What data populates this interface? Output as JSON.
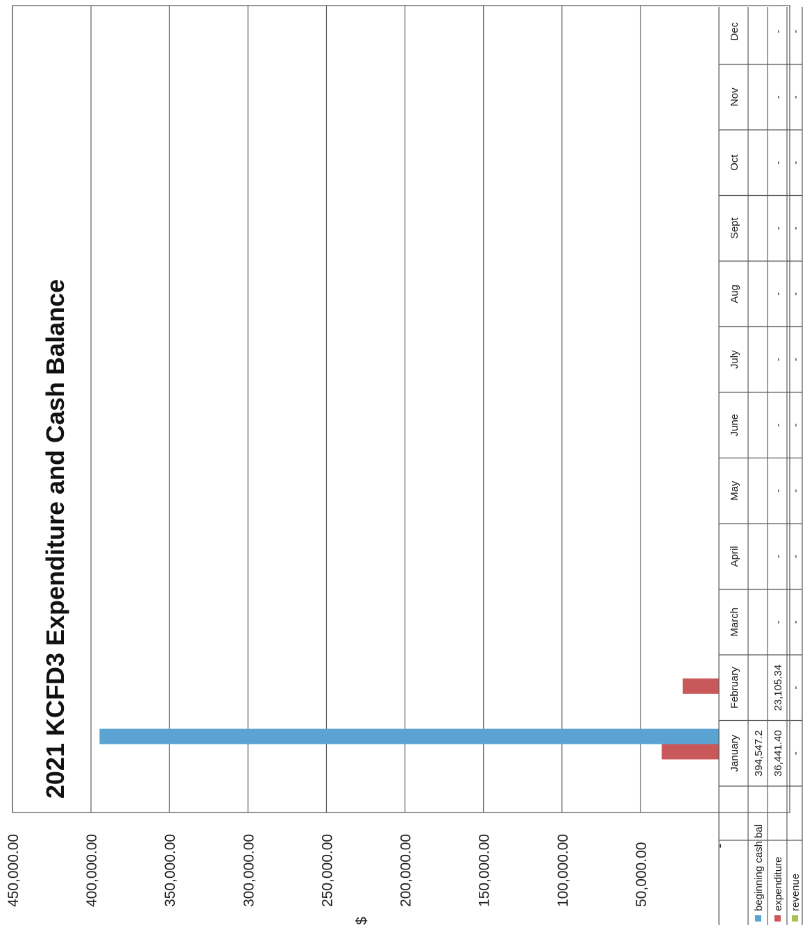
{
  "chart_data": {
    "type": "bar",
    "title": "2021 KCFD3 Expenditure and Cash Balance",
    "ylabel": "$",
    "ylim": [
      0,
      450000
    ],
    "yticks": [
      "-",
      "50,000.00",
      "100,000.00",
      "150,000.00",
      "200,000.00",
      "250,000.00",
      "300,000.00",
      "350,000.00",
      "400,000.00",
      "450,000.00"
    ],
    "categories": [
      "January",
      "February",
      "March",
      "April",
      "May",
      "June",
      "July",
      "Aug",
      "Sept",
      "Oct",
      "Nov",
      "Dec"
    ],
    "series": [
      {
        "name": "beginning cash bal",
        "color": "#5aa3d2",
        "values": [
          394547.2,
          null,
          null,
          null,
          null,
          null,
          null,
          null,
          null,
          null,
          null,
          null
        ],
        "table": [
          "394,547.2",
          "",
          "",
          "",
          "",
          "",
          "",
          "",
          "",
          "",
          "",
          ""
        ]
      },
      {
        "name": "expenditure",
        "color": "#c9585a",
        "values": [
          36441.4,
          23105.34,
          0,
          0,
          0,
          0,
          0,
          0,
          0,
          0,
          0,
          0
        ],
        "table": [
          "36,441.40",
          "23,105.34",
          "-",
          "-",
          "-",
          "-",
          "-",
          "-",
          "-",
          "-",
          "-",
          "-"
        ]
      },
      {
        "name": "revenue",
        "color": "#a6c254",
        "values": [
          0,
          0,
          0,
          0,
          0,
          0,
          0,
          0,
          0,
          0,
          0,
          0
        ],
        "table": [
          "-",
          "-",
          "-",
          "-",
          "-",
          "-",
          "-",
          "-",
          "-",
          "-",
          "-",
          "-"
        ]
      }
    ],
    "grid": true,
    "legend": "data table keys, left"
  }
}
